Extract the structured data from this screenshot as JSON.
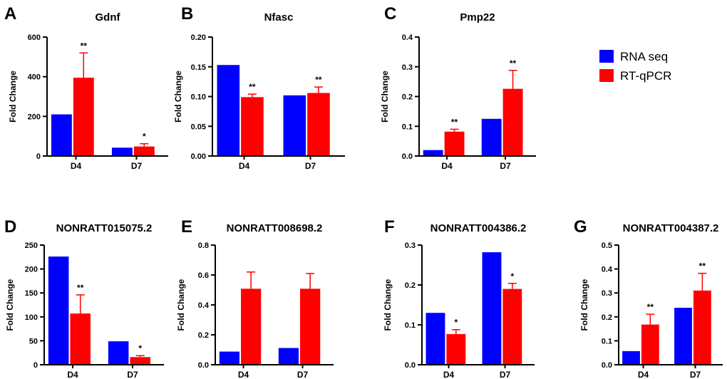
{
  "colors": {
    "rna_seq": "#0000ff",
    "rt_qpcr": "#ff0000",
    "axis": "#000000"
  },
  "legend": {
    "rna_seq": "RNA seq",
    "rt_qpcr": "RT-qPCR"
  },
  "chart_data": [
    {
      "panel": "A",
      "type": "bar",
      "title": "Gdnf",
      "ylabel": "Fold Change",
      "categories": [
        "D4",
        "D7"
      ],
      "ylim": [
        0,
        600
      ],
      "yticks": [
        0,
        200,
        400,
        600
      ],
      "ytick_labels": [
        "0",
        "200",
        "400",
        "600"
      ],
      "series": [
        {
          "name": "RNA seq",
          "values": [
            210,
            42
          ]
        },
        {
          "name": "RT-qPCR",
          "values": [
            395,
            48
          ],
          "errors": [
            125,
            14
          ],
          "significance": [
            "**",
            "*"
          ]
        }
      ]
    },
    {
      "panel": "B",
      "type": "bar",
      "title": "Nfasc",
      "ylabel": "Fold Change",
      "categories": [
        "D4",
        "D7"
      ],
      "ylim": [
        0,
        0.2
      ],
      "yticks": [
        0,
        0.05,
        0.1,
        0.15,
        0.2
      ],
      "ytick_labels": [
        "0.00",
        "0.05",
        "0.10",
        "0.15",
        "0.20"
      ],
      "series": [
        {
          "name": "RNA seq",
          "values": [
            0.153,
            0.102
          ]
        },
        {
          "name": "RT-qPCR",
          "values": [
            0.099,
            0.106
          ],
          "errors": [
            0.005,
            0.01
          ],
          "significance": [
            "**",
            "**"
          ]
        }
      ]
    },
    {
      "panel": "C",
      "type": "bar",
      "title": "Pmp22",
      "ylabel": "Fold Change",
      "categories": [
        "D4",
        "D7"
      ],
      "ylim": [
        0,
        0.4
      ],
      "yticks": [
        0,
        0.1,
        0.2,
        0.3,
        0.4
      ],
      "ytick_labels": [
        "0.0",
        "0.1",
        "0.2",
        "0.3",
        "0.4"
      ],
      "series": [
        {
          "name": "RNA seq",
          "values": [
            0.02,
            0.125
          ]
        },
        {
          "name": "RT-qPCR",
          "values": [
            0.082,
            0.226
          ],
          "errors": [
            0.008,
            0.062
          ],
          "significance": [
            "**",
            "**"
          ]
        }
      ]
    },
    {
      "panel": "D",
      "type": "bar",
      "title": "NONRATT015075.2",
      "ylabel": "Fold Change",
      "categories": [
        "D4",
        "D7"
      ],
      "ylim": [
        0,
        250
      ],
      "yticks": [
        0,
        50,
        100,
        150,
        200,
        250
      ],
      "ytick_labels": [
        "0",
        "50",
        "100",
        "150",
        "200",
        "250"
      ],
      "series": [
        {
          "name": "RNA seq",
          "values": [
            226,
            49
          ]
        },
        {
          "name": "RT-qPCR",
          "values": [
            107,
            16
          ],
          "errors": [
            39,
            3
          ],
          "significance": [
            "**",
            "*"
          ]
        }
      ]
    },
    {
      "panel": "E",
      "type": "bar",
      "title": "NONRATT008698.2",
      "ylabel": "Fold Change",
      "categories": [
        "D4",
        "D7"
      ],
      "ylim": [
        0,
        0.8
      ],
      "yticks": [
        0,
        0.2,
        0.4,
        0.6,
        0.8
      ],
      "ytick_labels": [
        "0.0",
        "0.2",
        "0.4",
        "0.6",
        "0.8"
      ],
      "series": [
        {
          "name": "RNA seq",
          "values": [
            0.088,
            0.112
          ]
        },
        {
          "name": "RT-qPCR",
          "values": [
            0.508,
            0.508
          ],
          "errors": [
            0.112,
            0.102
          ],
          "significance": [
            "",
            ""
          ]
        }
      ]
    },
    {
      "panel": "F",
      "type": "bar",
      "title": "NONRATT004386.2",
      "ylabel": "Fold Change",
      "categories": [
        "D4",
        "D7"
      ],
      "ylim": [
        0,
        0.3
      ],
      "yticks": [
        0,
        0.1,
        0.2,
        0.3
      ],
      "ytick_labels": [
        "0.0",
        "0.1",
        "0.2",
        "0.3"
      ],
      "series": [
        {
          "name": "RNA seq",
          "values": [
            0.13,
            0.282
          ]
        },
        {
          "name": "RT-qPCR",
          "values": [
            0.077,
            0.19
          ],
          "errors": [
            0.011,
            0.014
          ],
          "significance": [
            "*",
            "*"
          ]
        }
      ]
    },
    {
      "panel": "G",
      "type": "bar",
      "title": "NONRATT004387.2",
      "ylabel": "Fold Change",
      "categories": [
        "D4",
        "D7"
      ],
      "ylim": [
        0,
        0.5
      ],
      "yticks": [
        0,
        0.1,
        0.2,
        0.3,
        0.4,
        0.5
      ],
      "ytick_labels": [
        "0.0",
        "0.1",
        "0.2",
        "0.3",
        "0.4",
        "0.5"
      ],
      "series": [
        {
          "name": "RNA seq",
          "values": [
            0.057,
            0.238
          ]
        },
        {
          "name": "RT-qPCR",
          "values": [
            0.168,
            0.31
          ],
          "errors": [
            0.043,
            0.072
          ],
          "significance": [
            "**",
            "**"
          ]
        }
      ]
    }
  ]
}
